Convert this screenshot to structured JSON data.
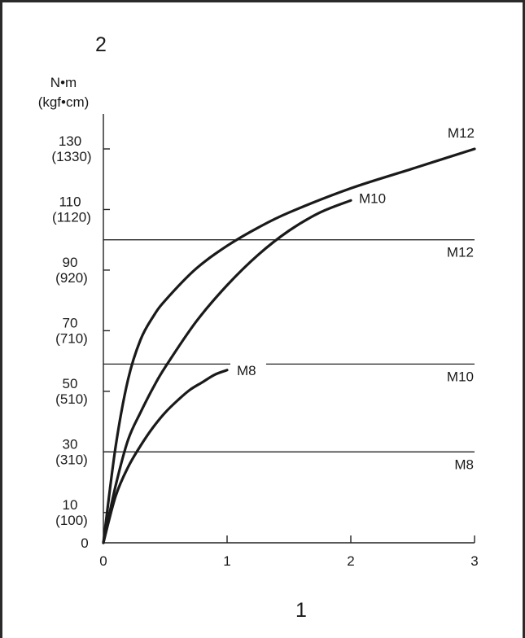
{
  "chart_data": {
    "type": "line",
    "corner_label_y": "2",
    "corner_label_x": "1",
    "ylabel_line1": "N•m",
    "ylabel_line2": "(kgf•cm)",
    "xlim": [
      0,
      3
    ],
    "ylim": [
      0,
      130
    ],
    "x_ticks": [
      {
        "value": 0,
        "label": "0"
      },
      {
        "value": 1,
        "label": "1"
      },
      {
        "value": 2,
        "label": "2"
      },
      {
        "value": 3,
        "label": "3"
      }
    ],
    "y_ticks": [
      {
        "value": 0,
        "label": "0",
        "sub": ""
      },
      {
        "value": 10,
        "label": "10",
        "sub": "(100)"
      },
      {
        "value": 30,
        "label": "30",
        "sub": "(310)"
      },
      {
        "value": 50,
        "label": "50",
        "sub": "(510)"
      },
      {
        "value": 70,
        "label": "70",
        "sub": "(710)"
      },
      {
        "value": 90,
        "label": "90",
        "sub": "(920)"
      },
      {
        "value": 110,
        "label": "110",
        "sub": "(1120)"
      },
      {
        "value": 130,
        "label": "130",
        "sub": "(1330)"
      }
    ],
    "series": [
      {
        "name": "M12",
        "x": [
          0,
          0.1,
          0.2,
          0.3,
          0.4,
          0.5,
          0.75,
          1.0,
          1.25,
          1.5,
          2.0,
          2.5,
          3.0
        ],
        "y": [
          0,
          32,
          54,
          67,
          74.5,
          80,
          90.5,
          98,
          104,
          109,
          117,
          123.5,
          130
        ]
      },
      {
        "name": "M10",
        "x": [
          0,
          0.1,
          0.2,
          0.3,
          0.4,
          0.5,
          0.75,
          1.0,
          1.25,
          1.5,
          1.75,
          2.0
        ],
        "y": [
          0,
          19,
          34,
          43,
          51,
          58,
          73,
          85,
          95,
          103,
          109,
          113
        ]
      },
      {
        "name": "M8",
        "x": [
          0,
          0.1,
          0.2,
          0.3,
          0.4,
          0.5,
          0.6,
          0.7,
          0.8,
          0.9,
          1.0
        ],
        "y": [
          0,
          15.5,
          25,
          32,
          38,
          43,
          47,
          50.5,
          53,
          55.5,
          57
        ]
      }
    ],
    "reference_lines": [
      {
        "name": "M12",
        "y": 100
      },
      {
        "name": "M10",
        "y": 59
      },
      {
        "name": "M8",
        "y": 30
      }
    ],
    "grid": false
  }
}
